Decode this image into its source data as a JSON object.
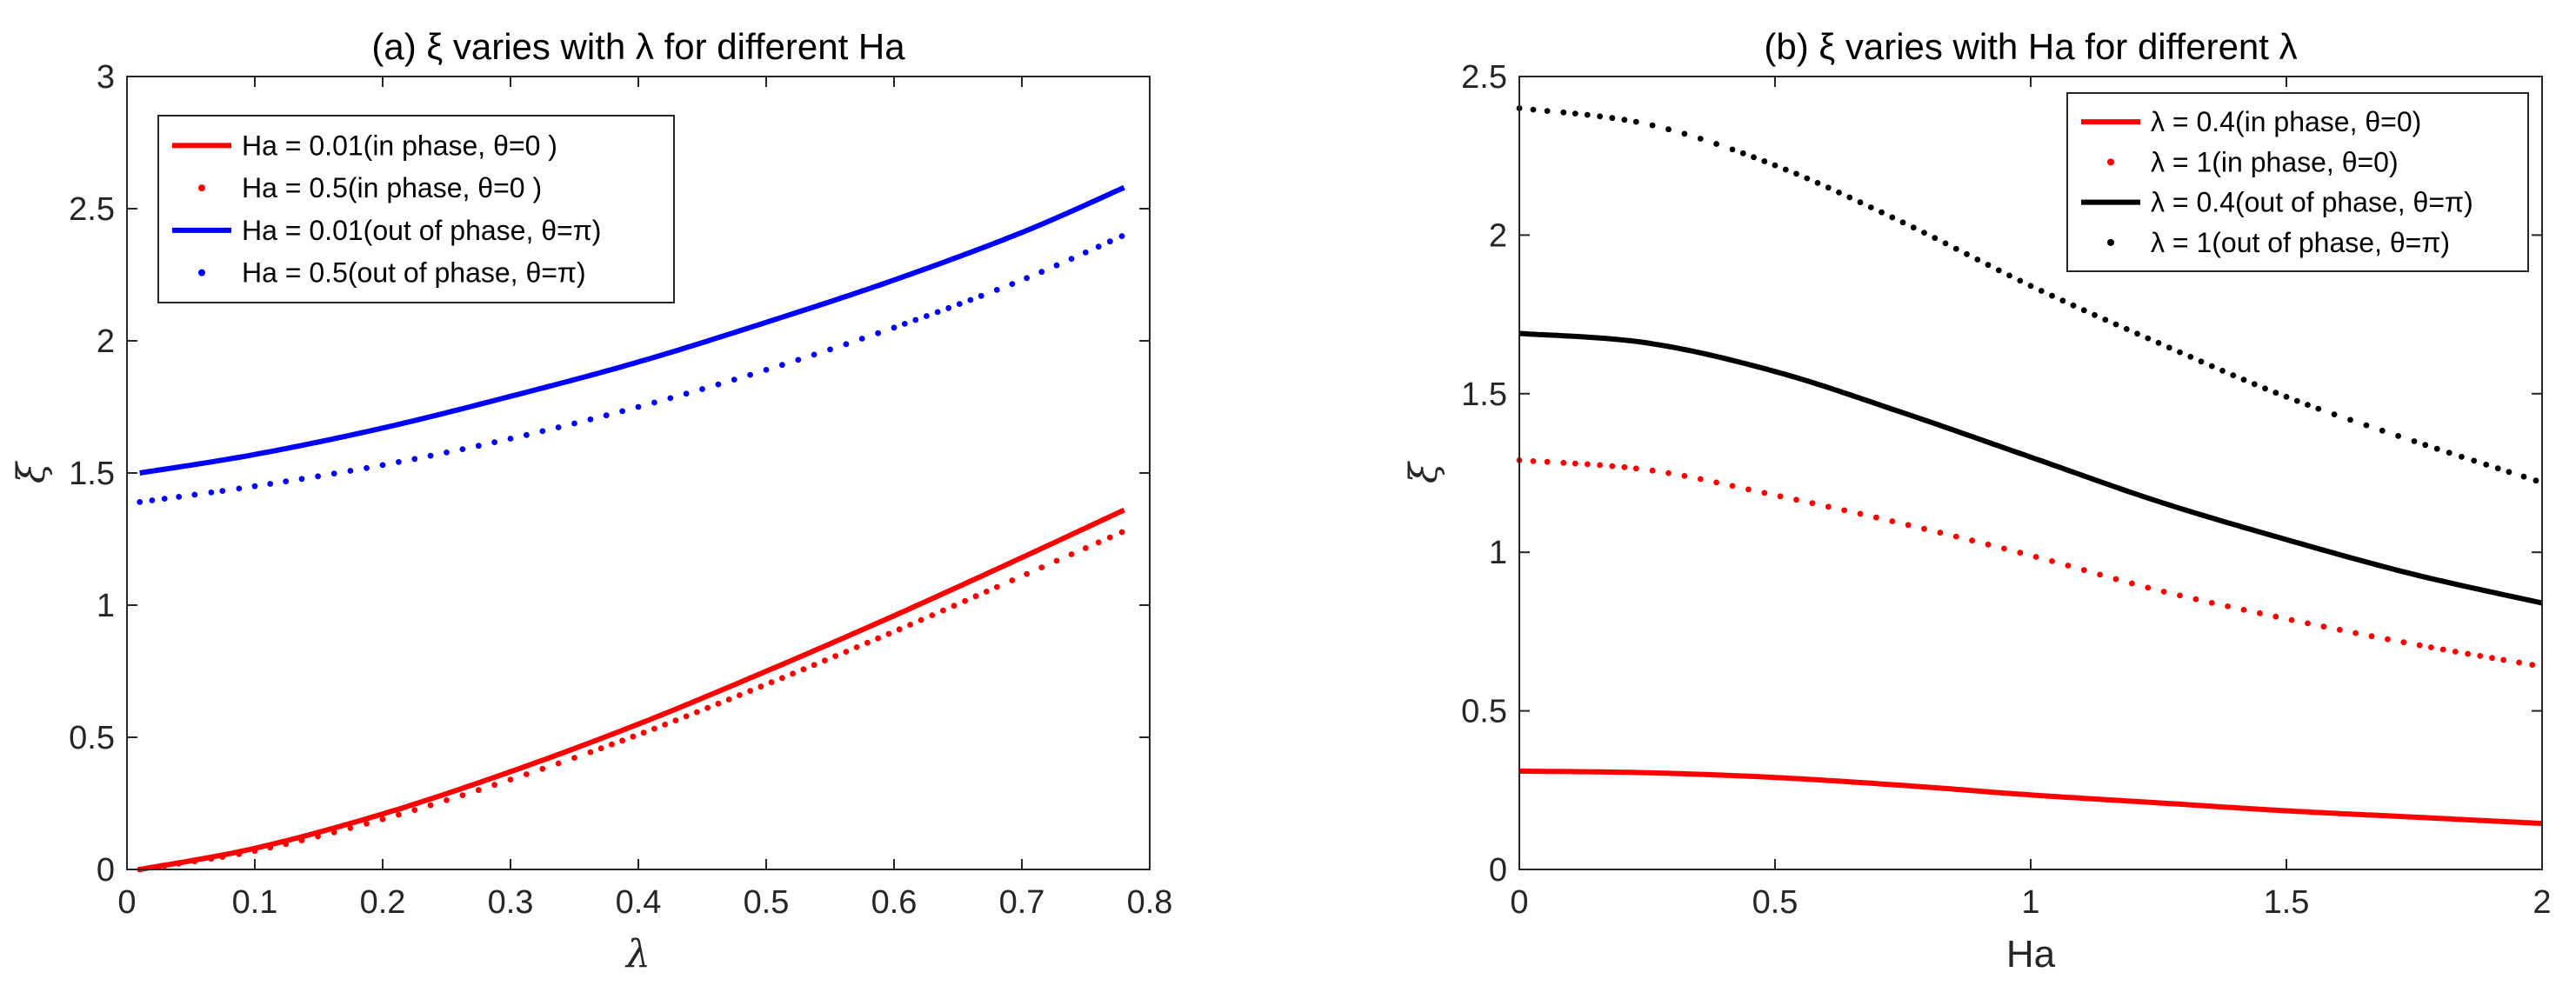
{
  "chart_data": [
    {
      "type": "line",
      "title": "(a) ξ varies with λ for different Ha",
      "xlabel": "λ",
      "ylabel": "ξ",
      "xlim": [
        0,
        0.8
      ],
      "ylim": [
        0,
        3
      ],
      "xticks": [
        "0",
        "0.1",
        "0.2",
        "0.3",
        "0.4",
        "0.5",
        "0.6",
        "0.7",
        "0.8"
      ],
      "yticks": [
        "0",
        "0.5",
        "1",
        "1.5",
        "2",
        "2.5",
        "3"
      ],
      "x": [
        0.01,
        0.1,
        0.2,
        0.3,
        0.4,
        0.5,
        0.6,
        0.7,
        0.78
      ],
      "legend_position": "top-left",
      "series": [
        {
          "name": "Ha = 0.01(in phase, θ=0 )",
          "color": "#ff0000",
          "style": "solid",
          "values": [
            0.0,
            0.08,
            0.21,
            0.37,
            0.55,
            0.75,
            0.96,
            1.18,
            1.36
          ]
        },
        {
          "name": "Ha = 0.5(in phase, θ=0 )",
          "color": "#ff0000",
          "style": "dotted",
          "values": [
            0.0,
            0.07,
            0.19,
            0.34,
            0.51,
            0.7,
            0.9,
            1.11,
            1.28
          ]
        },
        {
          "name": "Ha = 0.01(out of phase, θ=π)",
          "color": "#0000ff",
          "style": "solid",
          "values": [
            1.5,
            1.57,
            1.67,
            1.79,
            1.92,
            2.07,
            2.23,
            2.41,
            2.58
          ]
        },
        {
          "name": "Ha = 0.5(out of phase, θ=π)",
          "color": "#0000ff",
          "style": "dotted",
          "values": [
            1.39,
            1.45,
            1.53,
            1.63,
            1.75,
            1.89,
            2.05,
            2.23,
            2.4
          ]
        }
      ]
    },
    {
      "type": "line",
      "title": "(b) ξ varies with Ha for different λ",
      "xlabel": "Ha",
      "ylabel": "ξ",
      "xlim": [
        0,
        2
      ],
      "ylim": [
        0,
        2.5
      ],
      "xticks": [
        "0",
        "0.5",
        "1",
        "1.5",
        "2"
      ],
      "yticks": [
        "0",
        "0.5",
        "1",
        "1.5",
        "2",
        "2.5"
      ],
      "x": [
        0,
        0.25,
        0.5,
        0.75,
        1.0,
        1.25,
        1.5,
        1.75,
        2.0
      ],
      "legend_position": "top-right",
      "series": [
        {
          "name": "λ = 0.4(in phase, θ=0)",
          "color": "#ff0000",
          "style": "solid",
          "values": [
            0.31,
            0.305,
            0.29,
            0.265,
            0.235,
            0.21,
            0.185,
            0.165,
            0.145
          ]
        },
        {
          "name": "λ = 1(in phase, θ=0)",
          "color": "#ff0000",
          "style": "dotted",
          "values": [
            1.29,
            1.26,
            1.18,
            1.09,
            0.99,
            0.88,
            0.79,
            0.71,
            0.64
          ]
        },
        {
          "name": "λ = 0.4(out of phase, θ=π)",
          "color": "#000000",
          "style": "solid",
          "values": [
            1.69,
            1.66,
            1.57,
            1.44,
            1.3,
            1.16,
            1.04,
            0.93,
            0.84
          ]
        },
        {
          "name": "λ = 1(out of phase, θ=π)",
          "color": "#000000",
          "style": "dotted",
          "values": [
            2.4,
            2.35,
            2.22,
            2.04,
            1.84,
            1.66,
            1.49,
            1.35,
            1.22
          ]
        }
      ]
    }
  ]
}
